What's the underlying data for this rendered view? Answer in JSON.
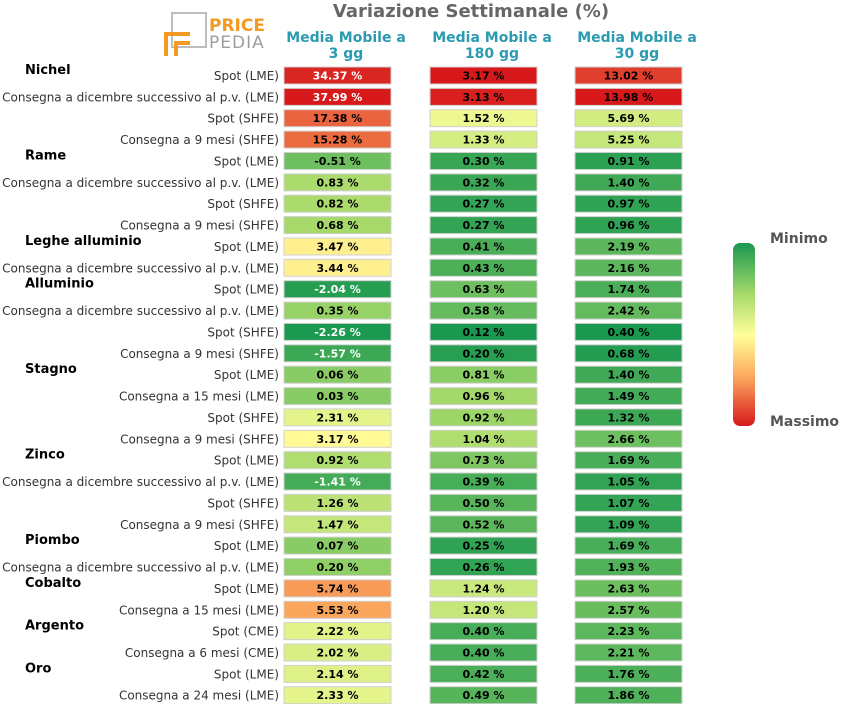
{
  "title": "Variazione Settimanale (%)",
  "logo": {
    "top": "PRICE",
    "bottom": "PEDIA"
  },
  "columns": [
    {
      "line1": "Media Mobile a",
      "line2": "3 gg"
    },
    {
      "line1": "Media Mobile a",
      "line2": "180 gg"
    },
    {
      "line1": "Media Mobile a",
      "line2": "30 gg"
    }
  ],
  "legend": {
    "min_label": "Minimo",
    "max_label": "Massimo"
  },
  "chart_data": {
    "type": "table",
    "title": "Variazione Settimanale (%)",
    "columns": [
      "Media Mobile a 3 gg",
      "Media Mobile a 180 gg",
      "Media Mobile a 30 gg"
    ],
    "groups": [
      {
        "name": "Nichel",
        "rows": [
          {
            "label": "Spot (LME)",
            "values": [
              34.37,
              3.17,
              13.02
            ]
          },
          {
            "label": "Consegna a dicembre successivo al p.v. (LME)",
            "values": [
              37.99,
              3.13,
              13.98
            ]
          },
          {
            "label": "Spot (SHFE)",
            "values": [
              17.38,
              1.52,
              5.69
            ]
          },
          {
            "label": "Consegna a 9 mesi (SHFE)",
            "values": [
              15.28,
              1.33,
              5.25
            ]
          }
        ]
      },
      {
        "name": "Rame",
        "rows": [
          {
            "label": "Spot (LME)",
            "values": [
              -0.51,
              0.3,
              0.91
            ]
          },
          {
            "label": "Consegna a dicembre successivo al p.v. (LME)",
            "values": [
              0.83,
              0.32,
              1.4
            ]
          },
          {
            "label": "Spot (SHFE)",
            "values": [
              0.82,
              0.27,
              0.97
            ]
          },
          {
            "label": "Consegna a 9 mesi (SHFE)",
            "values": [
              0.68,
              0.27,
              0.96
            ]
          }
        ]
      },
      {
        "name": "Leghe alluminio",
        "rows": [
          {
            "label": "Spot (LME)",
            "values": [
              3.47,
              0.41,
              2.19
            ]
          },
          {
            "label": "Consegna a dicembre successivo al p.v. (LME)",
            "values": [
              3.44,
              0.43,
              2.16
            ]
          }
        ]
      },
      {
        "name": "Alluminio",
        "rows": [
          {
            "label": "Spot (LME)",
            "values": [
              -2.04,
              0.63,
              1.74
            ]
          },
          {
            "label": "Consegna a dicembre successivo al p.v. (LME)",
            "values": [
              0.35,
              0.58,
              2.42
            ]
          },
          {
            "label": "Spot (SHFE)",
            "values": [
              -2.26,
              0.12,
              0.4
            ]
          },
          {
            "label": "Consegna a 9 mesi (SHFE)",
            "values": [
              -1.57,
              0.2,
              0.68
            ]
          }
        ]
      },
      {
        "name": "Stagno",
        "rows": [
          {
            "label": "Spot (LME)",
            "values": [
              0.06,
              0.81,
              1.4
            ]
          },
          {
            "label": "Consegna a 15 mesi (LME)",
            "values": [
              0.03,
              0.96,
              1.49
            ]
          },
          {
            "label": "Spot (SHFE)",
            "values": [
              2.31,
              0.92,
              1.32
            ]
          },
          {
            "label": "Consegna a 9 mesi (SHFE)",
            "values": [
              3.17,
              1.04,
              2.66
            ]
          }
        ]
      },
      {
        "name": "Zinco",
        "rows": [
          {
            "label": "Spot (LME)",
            "values": [
              0.92,
              0.73,
              1.69
            ]
          },
          {
            "label": "Consegna a dicembre successivo al p.v. (LME)",
            "values": [
              -1.41,
              0.39,
              1.05
            ]
          },
          {
            "label": "Spot (SHFE)",
            "values": [
              1.26,
              0.5,
              1.07
            ]
          },
          {
            "label": "Consegna a 9 mesi (SHFE)",
            "values": [
              1.47,
              0.52,
              1.09
            ]
          }
        ]
      },
      {
        "name": "Piombo",
        "rows": [
          {
            "label": "Spot (LME)",
            "values": [
              0.07,
              0.25,
              1.69
            ]
          },
          {
            "label": "Consegna a dicembre successivo al p.v. (LME)",
            "values": [
              0.2,
              0.26,
              1.93
            ]
          }
        ]
      },
      {
        "name": "Cobalto",
        "rows": [
          {
            "label": "Spot (LME)",
            "values": [
              5.74,
              1.24,
              2.63
            ]
          },
          {
            "label": "Consegna a 15 mesi (LME)",
            "values": [
              5.53,
              1.2,
              2.57
            ]
          }
        ]
      },
      {
        "name": "Argento",
        "rows": [
          {
            "label": "Spot (CME)",
            "values": [
              2.22,
              0.4,
              2.23
            ]
          },
          {
            "label": "Consegna a 6 mesi (CME)",
            "values": [
              2.02,
              0.4,
              2.21
            ]
          }
        ]
      },
      {
        "name": "Oro",
        "rows": [
          {
            "label": "Spot (LME)",
            "values": [
              2.14,
              0.42,
              1.76
            ]
          },
          {
            "label": "Consegna a 24 mesi (LME)",
            "values": [
              2.33,
              0.49,
              1.86
            ]
          }
        ]
      }
    ],
    "colorscale": {
      "min_label": "Minimo",
      "max_label": "Massimo",
      "min_color": "#1a9850",
      "mid_color": "#ffff99",
      "max_color": "#d7191c"
    }
  }
}
